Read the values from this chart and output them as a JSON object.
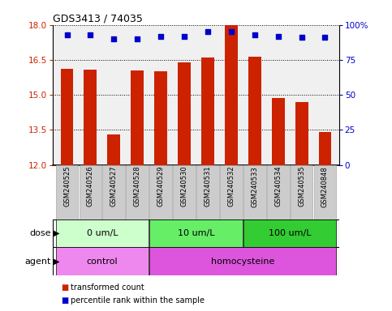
{
  "title": "GDS3413 / 74035",
  "samples": [
    "GSM240525",
    "GSM240526",
    "GSM240527",
    "GSM240528",
    "GSM240529",
    "GSM240530",
    "GSM240531",
    "GSM240532",
    "GSM240533",
    "GSM240534",
    "GSM240535",
    "GSM240848"
  ],
  "transformed_counts": [
    16.1,
    16.08,
    13.3,
    16.05,
    16.0,
    16.4,
    16.6,
    18.0,
    16.65,
    14.85,
    14.7,
    13.4
  ],
  "percentile_ranks": [
    93,
    93,
    90,
    90,
    92,
    92,
    95,
    95,
    93,
    92,
    91,
    91
  ],
  "bar_color": "#cc2200",
  "dot_color": "#0000cc",
  "ylim_left": [
    12,
    18
  ],
  "ylim_right": [
    0,
    100
  ],
  "yticks_left": [
    12,
    13.5,
    15,
    16.5,
    18
  ],
  "yticks_right": [
    0,
    25,
    50,
    75,
    100
  ],
  "dose_groups": [
    {
      "label": "0 um/L",
      "start": 0,
      "end": 3,
      "color": "#ccffcc"
    },
    {
      "label": "10 um/L",
      "start": 4,
      "end": 7,
      "color": "#66ee66"
    },
    {
      "label": "100 um/L",
      "start": 8,
      "end": 11,
      "color": "#33cc33"
    }
  ],
  "agent_groups": [
    {
      "label": "control",
      "start": 0,
      "end": 3,
      "color": "#ee88ee"
    },
    {
      "label": "homocysteine",
      "start": 4,
      "end": 11,
      "color": "#dd55dd"
    }
  ],
  "bar_color_legend": "#cc2200",
  "dot_color_legend": "#0000cc",
  "axis_color_left": "#cc2200",
  "axis_color_right": "#0000cc",
  "plot_bg": "#f0f0f0",
  "label_box_color": "#cccccc",
  "label_box_edge": "#aaaaaa"
}
